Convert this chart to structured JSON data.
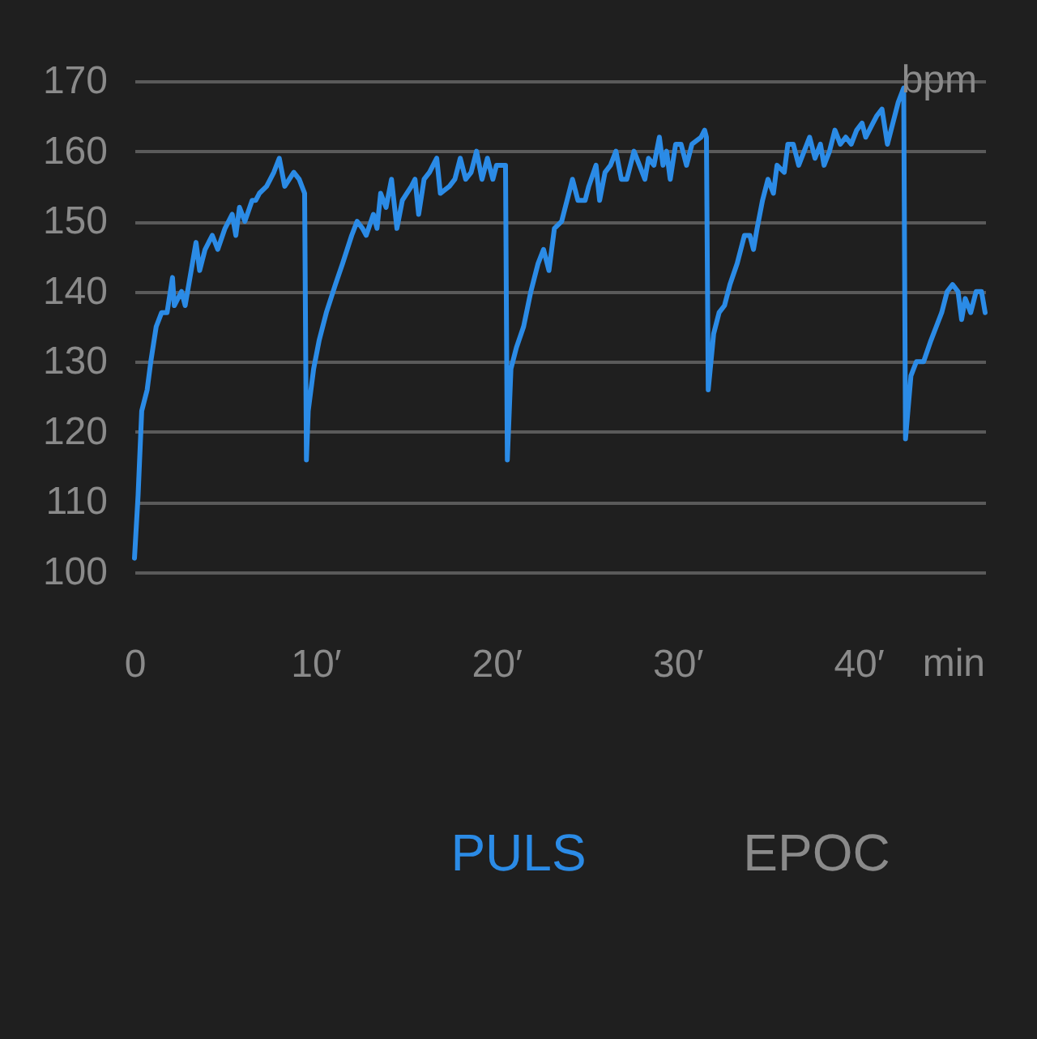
{
  "chart_data": {
    "type": "line",
    "xlabel": "min",
    "ylabel": "bpm",
    "x": [
      0,
      0.2,
      0.4,
      0.7,
      0.9,
      1.2,
      1.5,
      1.8,
      2.1,
      2.2,
      2.6,
      2.8,
      3.0,
      3.4,
      3.6,
      3.9,
      4.3,
      4.6,
      5.0,
      5.2,
      5.4,
      5.6,
      5.8,
      6.1,
      6.5,
      6.7,
      6.9,
      7.3,
      7.7,
      8.0,
      8.3,
      8.8,
      9.1,
      9.4,
      9.5,
      9.6,
      9.9,
      10.2,
      10.6,
      11.1,
      11.5,
      12.0,
      12.3,
      12.6,
      12.8,
      13.2,
      13.4,
      13.6,
      13.9,
      14.2,
      14.5,
      14.8,
      15.3,
      15.5,
      15.7,
      16.0,
      16.3,
      16.7,
      16.9,
      17.4,
      17.7,
      18.0,
      18.3,
      18.6,
      18.9,
      19.2,
      19.5,
      19.8,
      20.0,
      20.2,
      20.5,
      20.6,
      20.8,
      21.1,
      21.5,
      21.9,
      22.3,
      22.6,
      22.9,
      23.2,
      23.6,
      23.9,
      24.2,
      24.5,
      24.9,
      25.1,
      25.5,
      25.7,
      26.0,
      26.3,
      26.6,
      26.9,
      27.2,
      27.6,
      27.9,
      28.2,
      28.4,
      28.7,
      29.0,
      29.2,
      29.4,
      29.6,
      29.9,
      30.2,
      30.5,
      30.8,
      31.3,
      31.5,
      31.6,
      31.7,
      32.0,
      32.3,
      32.6,
      32.9,
      33.3,
      33.7,
      34.0,
      34.2,
      34.4,
      34.7,
      35.0,
      35.3,
      35.5,
      35.9,
      36.1,
      36.4,
      36.7,
      37.0,
      37.3,
      37.6,
      37.9,
      38.1,
      38.4,
      38.7,
      39.0,
      39.3,
      39.6,
      39.9,
      40.2,
      40.4,
      40.8,
      41.0,
      41.3,
      41.6,
      41.9,
      42.2,
      42.5,
      42.6,
      42.9,
      43.2,
      43.6,
      44.0,
      44.3,
      44.6,
      44.9,
      45.2,
      45.5,
      45.7,
      45.9,
      46.2,
      46.5,
      46.8,
      47.0
    ],
    "series": [
      {
        "name": "PULS",
        "color": "#2b8be6",
        "values": [
          102,
          111,
          123,
          126,
          130,
          135,
          137,
          137,
          142,
          138,
          140,
          138,
          141,
          147,
          143,
          146,
          148,
          146,
          149,
          150,
          151,
          148,
          152,
          150,
          153,
          153,
          154,
          155,
          157,
          159,
          155,
          157,
          156,
          154,
          116,
          123,
          129,
          133,
          137,
          141,
          144,
          148,
          150,
          149,
          148,
          151,
          149,
          154,
          152,
          156,
          149,
          153,
          155,
          156,
          151,
          156,
          157,
          159,
          154,
          155,
          156,
          159,
          156,
          157,
          160,
          156,
          159,
          156,
          158,
          158,
          158,
          116,
          129,
          132,
          135,
          140,
          144,
          146,
          143,
          149,
          150,
          153,
          156,
          153,
          153,
          155,
          158,
          153,
          157,
          158,
          160,
          156,
          156,
          160,
          158,
          156,
          159,
          158,
          162,
          158,
          160,
          156,
          161,
          161,
          158,
          161,
          162,
          163,
          162,
          126,
          134,
          137,
          138,
          141,
          144,
          148,
          148,
          146,
          149,
          153,
          156,
          154,
          158,
          157,
          161,
          161,
          158,
          160,
          162,
          159,
          161,
          158,
          160,
          163,
          161,
          162,
          161,
          163,
          164,
          162,
          164,
          165,
          166,
          161,
          164,
          167,
          169,
          119,
          128,
          130,
          130,
          133,
          135,
          137,
          140,
          141,
          140,
          136,
          139,
          137,
          140,
          140,
          137
        ]
      }
    ],
    "xlim": [
      0,
      47
    ],
    "ylim": [
      100,
      170
    ],
    "xticks": [
      0,
      {
        "value": 10,
        "label": "10′"
      },
      {
        "value": 20,
        "label": "20′"
      },
      {
        "value": 30,
        "label": "30′"
      },
      {
        "value": 40,
        "label": "40′"
      }
    ],
    "yticks": [
      100,
      110,
      120,
      130,
      140,
      150,
      160,
      170
    ],
    "grid": "y",
    "legend": "bottom",
    "line_style": "solid",
    "annotations": [
      "EPOC"
    ]
  }
}
